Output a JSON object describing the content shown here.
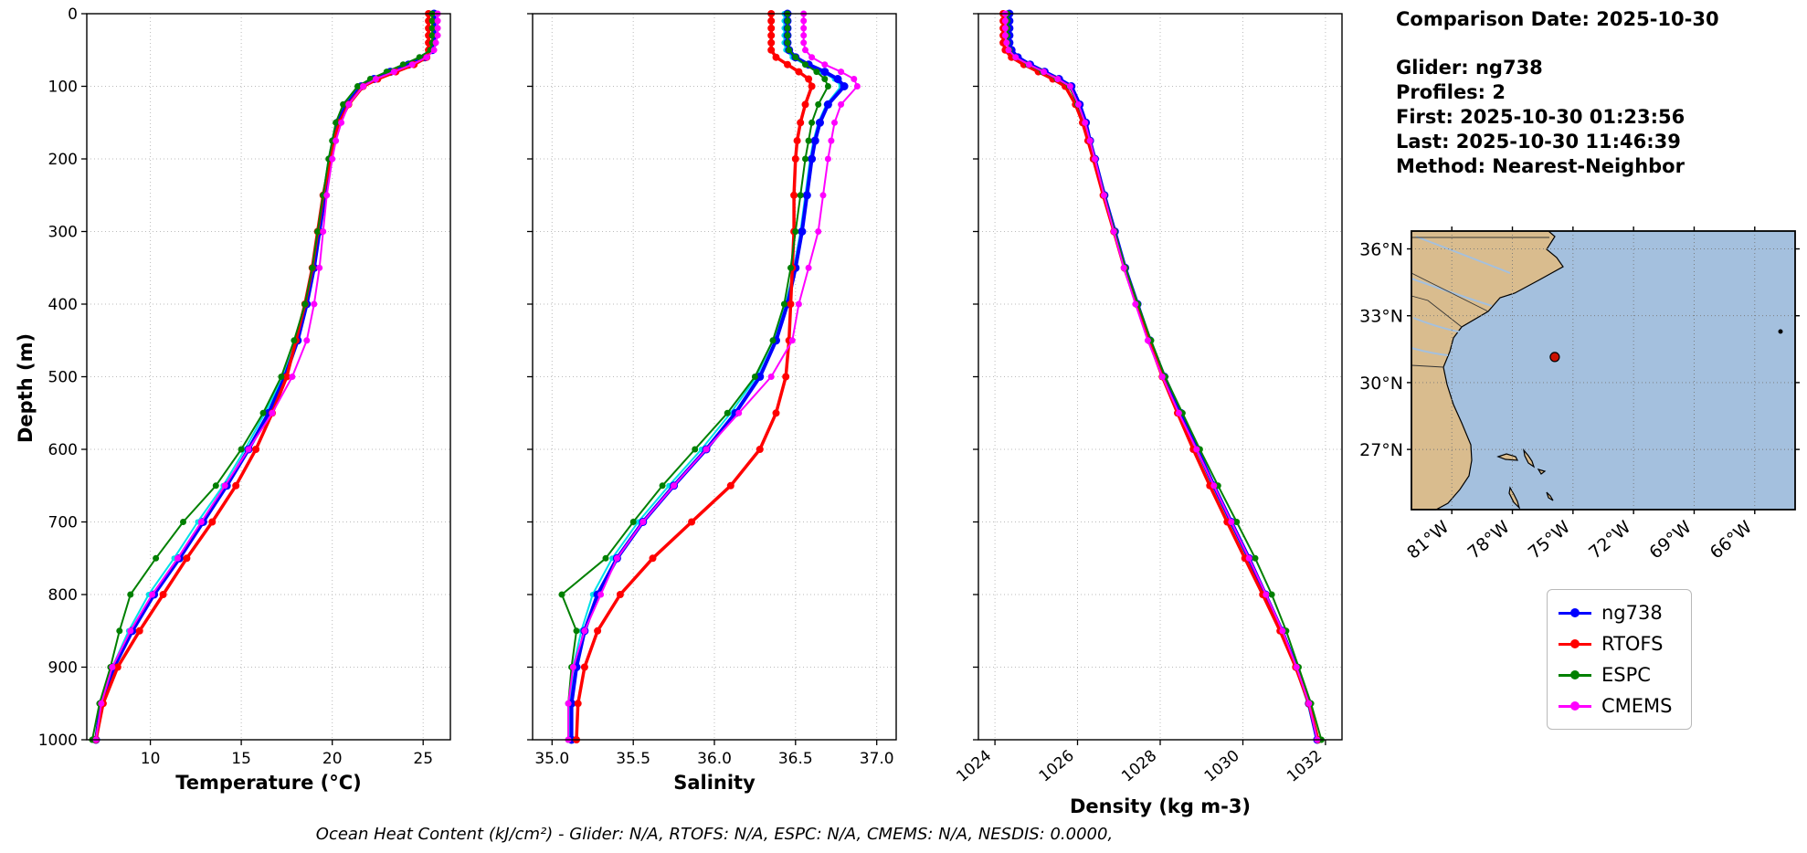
{
  "info_panel": {
    "comparison_date": "Comparison Date: 2025-10-30",
    "glider": "Glider: ng738",
    "profiles": "Profiles: 2",
    "first": "First: 2025-10-30 01:23:56",
    "last": "Last: 2025-10-30 11:46:39",
    "method": "Method: Nearest-Neighbor"
  },
  "footer": {
    "ohc_caption": "Ocean Heat Content (kJ/cm²) - Glider: N/A,  RTOFS: N/A,  ESPC: N/A,  CMEMS: N/A,  NESDIS: 0.0000,"
  },
  "legend": {
    "items": [
      {
        "label": "ng738",
        "color": "#0000ff"
      },
      {
        "label": "RTOFS",
        "color": "#ff0000"
      },
      {
        "label": "ESPC",
        "color": "#008000"
      },
      {
        "label": "CMEMS",
        "color": "#ff00ff"
      }
    ]
  },
  "map": {
    "lat_ticks": [
      "36°N",
      "33°N",
      "30°N",
      "27°N"
    ],
    "lon_ticks": [
      "81°W",
      "78°W",
      "75°W",
      "72°W",
      "69°W",
      "66°W"
    ],
    "marker": {
      "lat": 31.15,
      "lon": -75.9,
      "color": "#cc1100"
    },
    "land_color": "#d9bc8e",
    "ocean_color": "#a4c0de"
  },
  "chart_data": [
    {
      "type": "line",
      "xlabel": "Temperature (°C)",
      "ylabel": "Depth (m)",
      "xlim": [
        6.5,
        26.5
      ],
      "ylim": [
        0,
        1000
      ],
      "xticks": [
        10,
        15,
        20,
        25
      ],
      "xtick_labels": [
        "10",
        "15",
        "20",
        "25"
      ],
      "xtick_rotation": 0,
      "yticks": [
        0,
        100,
        200,
        300,
        400,
        500,
        600,
        700,
        800,
        900,
        1000
      ],
      "ytick_labels": [
        "0",
        "100",
        "200",
        "300",
        "400",
        "500",
        "600",
        "700",
        "800",
        "900",
        "1000"
      ],
      "show_ytick_labels": true,
      "grid": true,
      "depths": [
        0,
        10,
        20,
        30,
        40,
        50,
        60,
        70,
        80,
        90,
        100,
        125,
        150,
        175,
        200,
        250,
        300,
        350,
        400,
        450,
        500,
        550,
        600,
        650,
        700,
        750,
        800,
        850,
        900,
        950,
        1000
      ],
      "series": [
        {
          "name": "ng738-2",
          "color": "#00e0e8",
          "line_width": 2,
          "marker_radius": 3,
          "in_legend": false,
          "values": [
            25.5,
            25.5,
            25.5,
            25.5,
            25.5,
            25.4,
            25.0,
            24.1,
            23.1,
            22.2,
            21.5,
            20.7,
            20.2,
            20.0,
            19.8,
            19.5,
            19.2,
            18.9,
            18.5,
            18.0,
            17.3,
            16.3,
            15.2,
            14.0,
            12.6,
            11.3,
            9.9,
            8.8,
            7.9,
            7.2,
            7.0
          ]
        },
        {
          "name": "ng738",
          "color": "#0000ff",
          "line_width": 4,
          "marker_radius": 4.5,
          "in_legend": true,
          "values": [
            25.6,
            25.6,
            25.6,
            25.6,
            25.6,
            25.5,
            25.1,
            24.2,
            23.2,
            22.3,
            21.6,
            20.8,
            20.3,
            20.1,
            19.9,
            19.6,
            19.3,
            19.0,
            18.6,
            18.1,
            17.4,
            16.5,
            15.4,
            14.2,
            12.9,
            11.6,
            10.2,
            9.0,
            8.0,
            7.3,
            7.0
          ]
        },
        {
          "name": "RTOFS",
          "color": "#ff0000",
          "line_width": 3.5,
          "marker_radius": 4,
          "in_legend": true,
          "values": [
            25.3,
            25.3,
            25.3,
            25.3,
            25.3,
            25.3,
            25.2,
            24.5,
            23.5,
            22.5,
            21.7,
            20.9,
            20.4,
            20.1,
            19.9,
            19.5,
            19.2,
            18.9,
            18.5,
            18.0,
            17.5,
            16.7,
            15.8,
            14.7,
            13.4,
            12.0,
            10.7,
            9.4,
            8.2,
            7.4,
            7.0
          ]
        },
        {
          "name": "ESPC",
          "color": "#008000",
          "line_width": 2,
          "marker_radius": 3.5,
          "in_legend": true,
          "values": [
            25.5,
            25.5,
            25.5,
            25.5,
            25.5,
            25.4,
            24.8,
            23.9,
            23.0,
            22.1,
            21.4,
            20.6,
            20.2,
            20.0,
            19.8,
            19.5,
            19.2,
            18.9,
            18.5,
            17.9,
            17.2,
            16.2,
            15.0,
            13.6,
            11.8,
            10.3,
            8.9,
            8.3,
            7.8,
            7.2,
            6.8
          ]
        },
        {
          "name": "CMEMS",
          "color": "#ff00ff",
          "line_width": 2,
          "marker_radius": 3.5,
          "in_legend": true,
          "values": [
            25.8,
            25.8,
            25.8,
            25.8,
            25.7,
            25.6,
            25.2,
            24.4,
            23.4,
            22.4,
            21.7,
            20.9,
            20.5,
            20.2,
            20.0,
            19.7,
            19.5,
            19.3,
            19.0,
            18.6,
            17.8,
            16.7,
            15.4,
            14.1,
            12.8,
            11.5,
            10.1,
            8.9,
            7.9,
            7.3,
            7.0
          ]
        }
      ]
    },
    {
      "type": "line",
      "xlabel": "Salinity",
      "ylabel": "Depth (m)",
      "xlim": [
        34.88,
        37.12
      ],
      "ylim": [
        0,
        1000
      ],
      "xticks": [
        35.0,
        35.5,
        36.0,
        36.5,
        37.0
      ],
      "xtick_labels": [
        "35.0",
        "35.5",
        "36.0",
        "36.5",
        "37.0"
      ],
      "xtick_rotation": 0,
      "yticks": [
        0,
        100,
        200,
        300,
        400,
        500,
        600,
        700,
        800,
        900,
        1000
      ],
      "show_ytick_labels": false,
      "grid": true,
      "depths": [
        0,
        10,
        20,
        30,
        40,
        50,
        60,
        70,
        80,
        90,
        100,
        125,
        150,
        175,
        200,
        250,
        300,
        350,
        400,
        450,
        500,
        550,
        600,
        650,
        700,
        750,
        800,
        850,
        900,
        950,
        1000
      ],
      "series": [
        {
          "name": "ng738-2",
          "color": "#00e0e8",
          "line_width": 2,
          "marker_radius": 3,
          "in_legend": false,
          "values": [
            36.43,
            36.43,
            36.43,
            36.43,
            36.43,
            36.44,
            36.48,
            36.56,
            36.66,
            36.74,
            36.78,
            36.69,
            36.64,
            36.61,
            36.59,
            36.56,
            36.53,
            36.49,
            36.44,
            36.36,
            36.26,
            36.1,
            35.92,
            35.72,
            35.53,
            35.37,
            35.25,
            35.18,
            35.13,
            35.11,
            35.11
          ]
        },
        {
          "name": "ng738",
          "color": "#0000ff",
          "line_width": 4,
          "marker_radius": 4.5,
          "in_legend": true,
          "values": [
            36.45,
            36.45,
            36.45,
            36.45,
            36.45,
            36.46,
            36.5,
            36.58,
            36.68,
            36.76,
            36.8,
            36.7,
            36.65,
            36.62,
            36.6,
            36.57,
            36.54,
            36.5,
            36.45,
            36.38,
            36.28,
            36.13,
            35.95,
            35.75,
            35.56,
            35.4,
            35.28,
            35.2,
            35.15,
            35.12,
            35.12
          ]
        },
        {
          "name": "RTOFS",
          "color": "#ff0000",
          "line_width": 3.5,
          "marker_radius": 4,
          "in_legend": true,
          "values": [
            36.35,
            36.35,
            36.35,
            36.35,
            36.35,
            36.35,
            36.38,
            36.45,
            36.52,
            36.58,
            36.6,
            36.56,
            36.53,
            36.51,
            36.5,
            36.49,
            36.49,
            36.48,
            36.47,
            36.46,
            36.44,
            36.38,
            36.28,
            36.1,
            35.86,
            35.62,
            35.42,
            35.28,
            35.2,
            35.16,
            35.15
          ]
        },
        {
          "name": "ESPC",
          "color": "#008000",
          "line_width": 2,
          "marker_radius": 3.5,
          "in_legend": true,
          "values": [
            36.45,
            36.45,
            36.45,
            36.45,
            36.45,
            36.46,
            36.5,
            36.56,
            36.63,
            36.68,
            36.7,
            36.64,
            36.6,
            36.58,
            36.56,
            36.53,
            36.5,
            36.47,
            36.43,
            36.36,
            36.25,
            36.08,
            35.88,
            35.68,
            35.5,
            35.33,
            35.06,
            35.15,
            35.12,
            35.1,
            35.1
          ]
        },
        {
          "name": "CMEMS",
          "color": "#ff00ff",
          "line_width": 2,
          "marker_radius": 3.5,
          "in_legend": true,
          "values": [
            36.55,
            36.55,
            36.55,
            36.55,
            36.55,
            36.56,
            36.6,
            36.68,
            36.78,
            36.86,
            36.88,
            36.78,
            36.74,
            36.72,
            36.7,
            36.67,
            36.64,
            36.58,
            36.52,
            36.48,
            36.35,
            36.15,
            35.95,
            35.75,
            35.56,
            35.4,
            35.3,
            35.2,
            35.13,
            35.1,
            35.1
          ]
        }
      ]
    },
    {
      "type": "line",
      "xlabel": "Density (kg m-3)",
      "ylabel": "Depth (m)",
      "xlim": [
        1023.6,
        1032.4
      ],
      "ylim": [
        0,
        1000
      ],
      "xticks": [
        1024,
        1026,
        1028,
        1030,
        1032
      ],
      "xtick_labels": [
        "1024",
        "1026",
        "1028",
        "1030",
        "1032"
      ],
      "xtick_rotation": 40,
      "yticks": [
        0,
        100,
        200,
        300,
        400,
        500,
        600,
        700,
        800,
        900,
        1000
      ],
      "show_ytick_labels": false,
      "grid": true,
      "depths": [
        0,
        10,
        20,
        30,
        40,
        50,
        60,
        70,
        80,
        90,
        100,
        125,
        150,
        175,
        200,
        250,
        300,
        350,
        400,
        450,
        500,
        550,
        600,
        650,
        700,
        750,
        800,
        850,
        900,
        950,
        1000
      ],
      "series": [
        {
          "name": "ng738-2",
          "color": "#00e0e8",
          "line_width": 2,
          "marker_radius": 3,
          "in_legend": false,
          "values": [
            1024.32,
            1024.32,
            1024.32,
            1024.32,
            1024.32,
            1024.37,
            1024.52,
            1024.82,
            1025.17,
            1025.52,
            1025.82,
            1026.02,
            1026.17,
            1026.27,
            1026.39,
            1026.62,
            1026.87,
            1027.12,
            1027.42,
            1027.72,
            1028.07,
            1028.47,
            1028.87,
            1029.27,
            1029.69,
            1030.12,
            1030.52,
            1030.92,
            1031.27,
            1031.57,
            1031.78
          ]
        },
        {
          "name": "ng738",
          "color": "#0000ff",
          "line_width": 4,
          "marker_radius": 4.5,
          "in_legend": true,
          "values": [
            1024.35,
            1024.35,
            1024.35,
            1024.35,
            1024.35,
            1024.4,
            1024.55,
            1024.85,
            1025.2,
            1025.55,
            1025.85,
            1026.05,
            1026.2,
            1026.3,
            1026.42,
            1026.65,
            1026.9,
            1027.15,
            1027.45,
            1027.75,
            1028.1,
            1028.5,
            1028.9,
            1029.3,
            1029.72,
            1030.15,
            1030.55,
            1030.95,
            1031.3,
            1031.6,
            1031.8
          ]
        },
        {
          "name": "RTOFS",
          "color": "#ff0000",
          "line_width": 3.5,
          "marker_radius": 4,
          "in_legend": true,
          "values": [
            1024.2,
            1024.2,
            1024.2,
            1024.2,
            1024.2,
            1024.25,
            1024.4,
            1024.7,
            1025.05,
            1025.4,
            1025.7,
            1025.95,
            1026.12,
            1026.25,
            1026.38,
            1026.62,
            1026.88,
            1027.13,
            1027.43,
            1027.73,
            1028.05,
            1028.42,
            1028.8,
            1029.2,
            1029.62,
            1030.05,
            1030.48,
            1030.9,
            1031.28,
            1031.6,
            1031.82
          ]
        },
        {
          "name": "ESPC",
          "color": "#008000",
          "line_width": 2,
          "marker_radius": 3.5,
          "in_legend": true,
          "values": [
            1024.3,
            1024.3,
            1024.3,
            1024.3,
            1024.3,
            1024.35,
            1024.5,
            1024.8,
            1025.15,
            1025.5,
            1025.8,
            1026.0,
            1026.18,
            1026.3,
            1026.42,
            1026.65,
            1026.9,
            1027.16,
            1027.46,
            1027.78,
            1028.12,
            1028.54,
            1028.96,
            1029.4,
            1029.85,
            1030.3,
            1030.7,
            1031.05,
            1031.35,
            1031.65,
            1031.9
          ]
        },
        {
          "name": "CMEMS",
          "color": "#ff00ff",
          "line_width": 2,
          "marker_radius": 3.5,
          "in_legend": true,
          "values": [
            1024.25,
            1024.25,
            1024.25,
            1024.25,
            1024.28,
            1024.33,
            1024.5,
            1024.82,
            1025.18,
            1025.52,
            1025.82,
            1026.02,
            1026.18,
            1026.3,
            1026.42,
            1026.64,
            1026.88,
            1027.12,
            1027.4,
            1027.7,
            1028.05,
            1028.45,
            1028.88,
            1029.3,
            1029.72,
            1030.15,
            1030.56,
            1030.96,
            1031.3,
            1031.6,
            1031.8
          ]
        }
      ]
    }
  ]
}
